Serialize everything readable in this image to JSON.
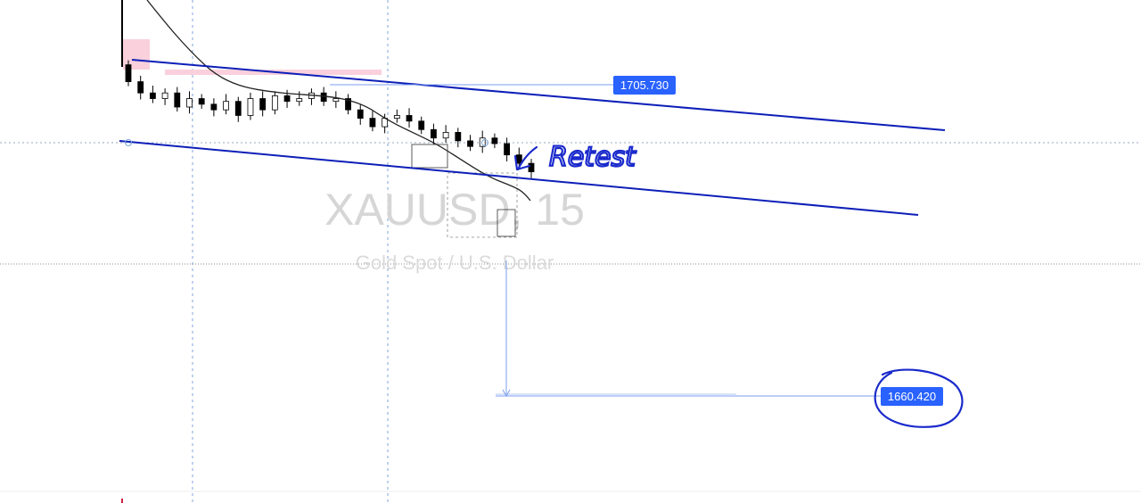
{
  "watermark": {
    "symbol": "XAUUSD, 15",
    "description": "Gold Spot / U.S. Dollar"
  },
  "annotation": {
    "text": "Retest",
    "color": "#1a2acc"
  },
  "price_labels": {
    "upper": "1705.730",
    "target": "1660.420"
  },
  "colors": {
    "channel_line": "#0d1fb8",
    "candles": "#000000",
    "moving_average": "#222222",
    "price_tag_bg": "#2962ff",
    "measure_line": "#7b9cf0",
    "zone": "#f9d0dc"
  },
  "chart_data": {
    "type": "line",
    "symbol": "XAUUSD",
    "timeframe": "15",
    "y_axis": "price",
    "ylim": [
      1652,
      1728
    ],
    "channel": {
      "upper_line": {
        "start_price": 1719,
        "end_price": 1703
      },
      "lower_line": {
        "start_price": 1707,
        "end_price": 1690
      }
    },
    "close_series": [
      1718,
      1714,
      1712,
      1714,
      1709,
      1712,
      1710,
      1708,
      1711,
      1706,
      1712,
      1708,
      1713,
      1711,
      1712,
      1714,
      1711,
      1712,
      1708,
      1705,
      1702,
      1705,
      1706,
      1704,
      1701,
      1698,
      1700,
      1697,
      1695,
      1698,
      1696,
      1692,
      1689,
      1686
    ],
    "levels": [
      {
        "label": "1705.730",
        "price": 1705.73
      },
      {
        "label": "1660.420",
        "price": 1660.42
      }
    ],
    "grid": false
  }
}
